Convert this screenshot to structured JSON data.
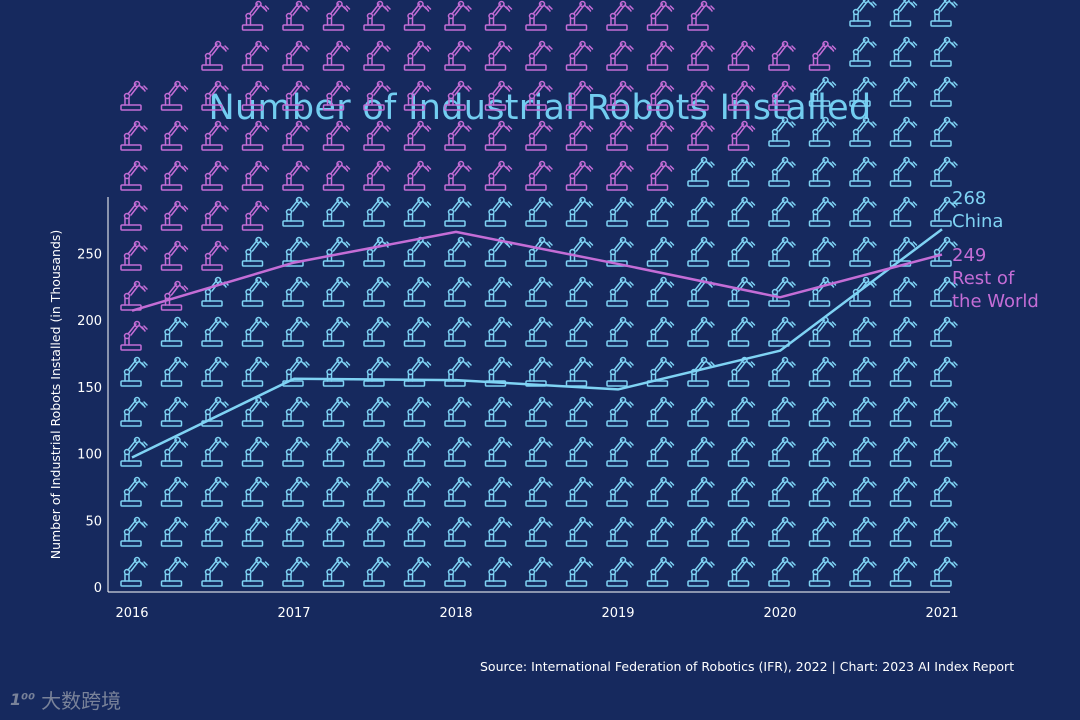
{
  "chart_data": {
    "type": "line",
    "title": "Number of Industrial Robots Installed",
    "ylabel": "Number of Industrial Robots Installed (in Thousands)",
    "xlabel": "",
    "x": [
      "2016",
      "2017",
      "2018",
      "2019",
      "2020",
      "2021"
    ],
    "ylim": [
      0,
      300
    ],
    "yticks": [
      0,
      50,
      100,
      150,
      200,
      250
    ],
    "series": [
      {
        "name": "China",
        "color": "#7fd3f4",
        "values": [
          97,
          156,
          155,
          148,
          177,
          268
        ],
        "end_label_value": "268",
        "end_label_name": [
          "China"
        ]
      },
      {
        "name": "Rest of the World",
        "color": "#c46dd6",
        "values": [
          207,
          243,
          266,
          242,
          217,
          249
        ],
        "end_label_value": "249",
        "end_label_name": [
          "Rest of",
          "the World"
        ]
      }
    ],
    "source": "Source: International Federation of Robotics (IFR), 2022 | Chart: 2023 AI Index Report"
  },
  "watermark": {
    "logo": "1⁰⁰",
    "text": "大数跨境"
  }
}
